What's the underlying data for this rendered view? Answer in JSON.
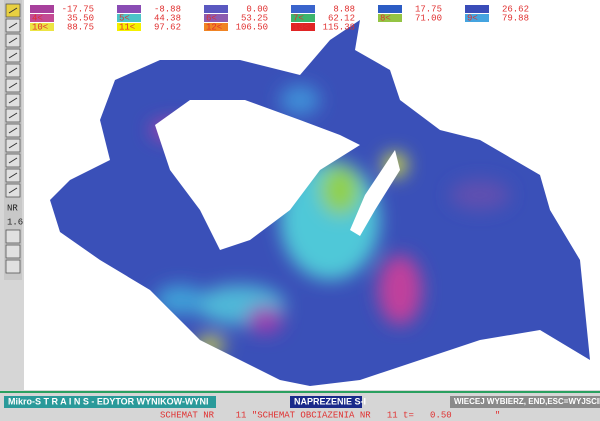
{
  "legend": {
    "rows": [
      [
        {
          "value": "-17.75",
          "color": "#a8409c"
        },
        {
          "value": "-8.88",
          "color": "#8a4cb4"
        },
        {
          "value": "0.00",
          "color": "#5a58c0"
        },
        {
          "value": "8.88",
          "color": "#3a64cc"
        },
        {
          "value": "17.75",
          "color": "#2c5cc4"
        },
        {
          "value": "26.62",
          "color": "#3a4cb8"
        }
      ],
      [
        {
          "marker": "4<",
          "value": "35.50",
          "color": "#c44a94"
        },
        {
          "marker": "5<",
          "value": "44.38",
          "color": "#4cc4c8"
        },
        {
          "marker": "6<",
          "value": "53.25",
          "color": "#8c5cb0"
        },
        {
          "marker": "7<",
          "value": "62.12",
          "color": "#3cb46c"
        },
        {
          "marker": "8<",
          "value": "71.00",
          "color": "#94c444"
        },
        {
          "marker": "9<",
          "value": "79.88",
          "color": "#44a4e0"
        }
      ],
      [
        {
          "marker": "10<",
          "value": "88.75",
          "color": "#ece444"
        },
        {
          "marker": "11<",
          "value": "97.62",
          "color": "#f4f000"
        },
        {
          "marker": "12<",
          "value": "106.50",
          "color": "#f08424"
        },
        {
          "marker": "13<",
          "value": "115.38",
          "color": "#e02424"
        }
      ]
    ]
  },
  "toolbar": {
    "labels": [
      "NR",
      "1.6"
    ]
  },
  "status_bar": {
    "title": "Mikro-S T R A I N S - EDYTOR WYNIKOW-WYNI",
    "mode": "NAPREZENIE S-I",
    "hint": "WIECEJ WYBIERZ, END,ESC=WYJSCIE",
    "schema": "SCHEMAT NR    11 \"SCHEMAT OBCIAZENIA NR   11 t=   0.50        \""
  }
}
